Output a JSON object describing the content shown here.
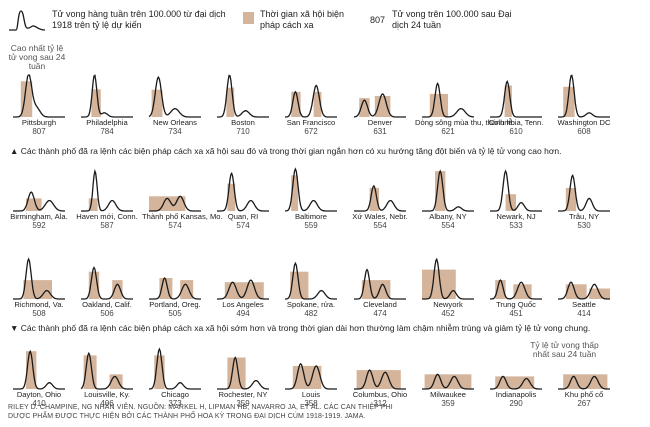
{
  "legend": {
    "line_label": "Tử vong hàng tuần trên 100.000 từ đại dịch 1918 trên tỷ lệ dự kiến",
    "bar_label": "Thời gian xã hội biện pháp cách xa",
    "number_example": "807",
    "number_label": "Tử vong trên 100.000 sau Đại dịch 24 tuần"
  },
  "top_note": "Cao nhất tỷ lệ tử vong sau 24 tuần",
  "section_notes": {
    "up": "▲ Các thành phố đã ra lệnh các biện pháp cách xa xã hội sau đó và trong thời gian ngắn hơn có xu hướng tăng đột biến và tỷ lệ tử vong cao hơn.",
    "down": "▼ Các thành phố đã ra lệnh các biện pháp cách xa xã hội sớm hơn và trong thời gian dài hơn thường làm chậm nhiễm trùng và giảm tỷ lệ tử vong chung."
  },
  "bottom_note": "Tỷ lệ tử vong thấp nhất sau 24 tuần",
  "credit": {
    "line1": "RILEY D. CHAMPINE, NG NHÂN VIÊN. NGUỒN: MARKEL H, LIPMAN HB, NAVARRO JA, ET AL. CÁC CAN THIỆP PHI",
    "line2": "DƯỢC PHẨM ĐƯỢC THỰC HIỆN BỞI CÁC THÀNH PHỐ HOA KỲ TRONG ĐẠI DỊCH CÚM 1918-1919. JAMA."
  },
  "colors": {
    "line": "#1a1a1a",
    "bar": "#d4b59c"
  },
  "chart_data": {
    "type": "line",
    "subtype": "small-multiples",
    "xlabel": "",
    "ylabel": "",
    "cities": [
      {
        "name": "Pittsburgh",
        "deaths": 807,
        "bars": [
          [
            0.15,
            0.37,
            0.85
          ]
        ],
        "peaks": [
          [
            0.3,
            1.0,
            0.06
          ],
          [
            0.45,
            0.22,
            0.07
          ]
        ]
      },
      {
        "name": "Philadelphia",
        "deaths": 784,
        "bars": [
          [
            0.2,
            0.38,
            0.66
          ]
        ],
        "peaks": [
          [
            0.26,
            1.0,
            0.045
          ],
          [
            0.45,
            0.1,
            0.06
          ]
        ]
      },
      {
        "name": "New Orleans",
        "deaths": 734,
        "bars": [
          [
            0.05,
            0.26,
            0.65
          ]
        ],
        "peaks": [
          [
            0.18,
            0.95,
            0.06
          ],
          [
            0.5,
            0.2,
            0.08
          ]
        ]
      },
      {
        "name": "Boston",
        "deaths": 710,
        "bars": [
          [
            0.18,
            0.33,
            0.7
          ]
        ],
        "peaks": [
          [
            0.24,
            1.0,
            0.05
          ],
          [
            0.55,
            0.15,
            0.07
          ]
        ]
      },
      {
        "name": "San Francisco",
        "deaths": 672,
        "bars": [
          [
            0.12,
            0.3,
            0.6
          ],
          [
            0.55,
            0.7,
            0.6
          ]
        ],
        "peaks": [
          [
            0.2,
            0.6,
            0.05
          ],
          [
            0.6,
            0.75,
            0.06
          ]
        ]
      },
      {
        "name": "Denver",
        "deaths": 631,
        "bars": [
          [
            0.1,
            0.3,
            0.45
          ],
          [
            0.4,
            0.7,
            0.5
          ]
        ],
        "peaks": [
          [
            0.2,
            0.4,
            0.06
          ],
          [
            0.55,
            0.55,
            0.07
          ]
        ]
      },
      {
        "name": "Dòng sông mùa thu, thánh lễ.",
        "deaths": 621,
        "bars": [
          [
            0.15,
            0.5,
            0.55
          ]
        ],
        "peaks": [
          [
            0.3,
            0.8,
            0.05
          ],
          [
            0.75,
            0.2,
            0.08
          ]
        ]
      },
      {
        "name": "Columbia, Tenn.",
        "deaths": 610,
        "bars": [
          [
            0.28,
            0.42,
            0.75
          ]
        ],
        "peaks": [
          [
            0.33,
            0.85,
            0.05
          ]
        ]
      },
      {
        "name": "Washington DC",
        "deaths": 608,
        "bars": [
          [
            0.1,
            0.32,
            0.72
          ]
        ],
        "peaks": [
          [
            0.26,
            1.0,
            0.05
          ],
          [
            0.6,
            0.1,
            0.06
          ]
        ]
      },
      {
        "name": "Birmingham, Ala.",
        "deaths": 592,
        "bars": [
          [
            0.25,
            0.55,
            0.3
          ]
        ],
        "peaks": [
          [
            0.35,
            0.45,
            0.06
          ],
          [
            0.7,
            0.25,
            0.08
          ]
        ]
      },
      {
        "name": "Haven mới, Conn.",
        "deaths": 587,
        "bars": [
          [
            0.15,
            0.32,
            0.3
          ]
        ],
        "peaks": [
          [
            0.27,
            0.95,
            0.04
          ],
          [
            0.6,
            0.25,
            0.07
          ]
        ]
      },
      {
        "name": "Thành phố Kansas, Mo.",
        "deaths": 574,
        "bars": [
          [
            0.0,
            0.7,
            0.35
          ]
        ],
        "peaks": [
          [
            0.35,
            0.3,
            0.07
          ],
          [
            0.6,
            0.35,
            0.07
          ]
        ]
      },
      {
        "name": "Quan, RI",
        "deaths": 574,
        "bars": [
          [
            0.2,
            0.35,
            0.65
          ]
        ],
        "peaks": [
          [
            0.28,
            0.9,
            0.05
          ],
          [
            0.65,
            0.25,
            0.07
          ]
        ]
      },
      {
        "name": "Baltimore",
        "deaths": 559,
        "bars": [
          [
            0.12,
            0.25,
            0.85
          ]
        ],
        "peaks": [
          [
            0.2,
            1.0,
            0.05
          ],
          [
            0.55,
            0.25,
            0.07
          ]
        ]
      },
      {
        "name": "Xứ Wales, Nebr.",
        "deaths": 554,
        "bars": [
          [
            0.3,
            0.48,
            0.55
          ]
        ],
        "peaks": [
          [
            0.38,
            0.6,
            0.05
          ],
          [
            0.7,
            0.25,
            0.07
          ]
        ]
      },
      {
        "name": "Albany, NY",
        "deaths": 554,
        "bars": [
          [
            0.25,
            0.45,
            0.95
          ]
        ],
        "peaks": [
          [
            0.35,
            0.95,
            0.05
          ],
          [
            0.7,
            0.1,
            0.06
          ]
        ]
      },
      {
        "name": "Newark, NJ",
        "deaths": 533,
        "bars": [
          [
            0.3,
            0.5,
            0.4
          ]
        ],
        "peaks": [
          [
            0.3,
            0.95,
            0.05
          ],
          [
            0.6,
            0.2,
            0.06
          ]
        ]
      },
      {
        "name": "Trâu, NY",
        "deaths": 530,
        "bars": [
          [
            0.15,
            0.35,
            0.55
          ]
        ],
        "peaks": [
          [
            0.28,
            0.85,
            0.05
          ],
          [
            0.6,
            0.3,
            0.06
          ]
        ]
      },
      {
        "name": "Richmond, Va.",
        "deaths": 508,
        "bars": [
          [
            0.2,
            0.75,
            0.45
          ]
        ],
        "peaks": [
          [
            0.3,
            0.95,
            0.05
          ],
          [
            0.65,
            0.2,
            0.07
          ]
        ]
      },
      {
        "name": "Oakland, Calif.",
        "deaths": 506,
        "bars": [
          [
            0.15,
            0.35,
            0.65
          ],
          [
            0.6,
            0.8,
            0.45
          ]
        ],
        "peaks": [
          [
            0.25,
            0.75,
            0.05
          ],
          [
            0.7,
            0.35,
            0.06
          ]
        ]
      },
      {
        "name": "Portland, Oreg.",
        "deaths": 505,
        "bars": [
          [
            0.2,
            0.45,
            0.5
          ],
          [
            0.6,
            0.85,
            0.45
          ]
        ],
        "peaks": [
          [
            0.3,
            0.5,
            0.05
          ],
          [
            0.7,
            0.35,
            0.07
          ]
        ]
      },
      {
        "name": "Los Angeles",
        "deaths": 494,
        "bars": [
          [
            0.15,
            0.9,
            0.4
          ]
        ],
        "peaks": [
          [
            0.3,
            0.4,
            0.07
          ],
          [
            0.65,
            0.45,
            0.07
          ]
        ]
      },
      {
        "name": "Spokane, rửa.",
        "deaths": 482,
        "bars": [
          [
            0.1,
            0.45,
            0.65
          ]
        ],
        "peaks": [
          [
            0.2,
            0.85,
            0.05
          ],
          [
            0.7,
            0.2,
            0.07
          ]
        ]
      },
      {
        "name": "Cleveland",
        "deaths": 474,
        "bars": [
          [
            0.15,
            0.7,
            0.45
          ]
        ],
        "peaks": [
          [
            0.25,
            0.7,
            0.05
          ],
          [
            0.55,
            0.35,
            0.06
          ]
        ]
      },
      {
        "name": "Newyork",
        "deaths": 452,
        "bars": [
          [
            0.0,
            0.65,
            0.7
          ]
        ],
        "peaks": [
          [
            0.28,
            0.95,
            0.05
          ],
          [
            0.6,
            0.2,
            0.06
          ]
        ]
      },
      {
        "name": "Trung Quốc",
        "deaths": 451,
        "bars": [
          [
            0.1,
            0.3,
            0.45
          ],
          [
            0.45,
            0.8,
            0.35
          ]
        ],
        "peaks": [
          [
            0.2,
            0.45,
            0.05
          ],
          [
            0.6,
            0.4,
            0.07
          ]
        ]
      },
      {
        "name": "Seattle",
        "deaths": 414,
        "bars": [
          [
            0.15,
            0.55,
            0.35
          ],
          [
            0.6,
            1.0,
            0.25
          ]
        ],
        "peaks": [
          [
            0.25,
            0.4,
            0.06
          ],
          [
            0.7,
            0.35,
            0.07
          ]
        ]
      },
      {
        "name": "Dayton, Ohio",
        "deaths": 410,
        "bars": [
          [
            0.25,
            0.45,
            0.9
          ]
        ],
        "peaks": [
          [
            0.33,
            0.9,
            0.05
          ],
          [
            0.7,
            0.15,
            0.06
          ]
        ]
      },
      {
        "name": "Louisville, Ky.",
        "deaths": 406,
        "bars": [
          [
            0.05,
            0.3,
            0.8
          ],
          [
            0.55,
            0.8,
            0.35
          ]
        ],
        "peaks": [
          [
            0.15,
            0.85,
            0.05
          ],
          [
            0.65,
            0.3,
            0.07
          ]
        ]
      },
      {
        "name": "Chicago",
        "deaths": 373,
        "bars": [
          [
            0.1,
            0.3,
            0.8
          ]
        ],
        "peaks": [
          [
            0.2,
            0.95,
            0.05
          ],
          [
            0.6,
            0.15,
            0.06
          ]
        ]
      },
      {
        "name": "Rochester, NY",
        "deaths": 359,
        "bars": [
          [
            0.2,
            0.55,
            0.75
          ]
        ],
        "peaks": [
          [
            0.35,
            0.75,
            0.05
          ],
          [
            0.75,
            0.2,
            0.07
          ]
        ]
      },
      {
        "name": "Louis",
        "deaths": 358,
        "bars": [
          [
            0.15,
            0.7,
            0.55
          ]
        ],
        "peaks": [
          [
            0.3,
            0.6,
            0.06
          ],
          [
            0.6,
            0.55,
            0.07
          ]
        ]
      },
      {
        "name": "Columbus, Ohio",
        "deaths": 312,
        "bars": [
          [
            0.05,
            0.9,
            0.45
          ]
        ],
        "peaks": [
          [
            0.3,
            0.45,
            0.06
          ],
          [
            0.6,
            0.4,
            0.07
          ]
        ]
      },
      {
        "name": "Milwaukee",
        "deaths": 359,
        "bars": [
          [
            0.05,
            0.95,
            0.35
          ]
        ],
        "peaks": [
          [
            0.3,
            0.35,
            0.06
          ],
          [
            0.62,
            0.3,
            0.07
          ]
        ]
      },
      {
        "name": "Indianapolis",
        "deaths": 290,
        "bars": [
          [
            0.1,
            0.85,
            0.3
          ]
        ],
        "peaks": [
          [
            0.25,
            0.3,
            0.06
          ],
          [
            0.7,
            0.25,
            0.07
          ]
        ]
      },
      {
        "name": "Khu phố cổ",
        "deaths": 267,
        "bars": [
          [
            0.1,
            0.95,
            0.35
          ]
        ],
        "peaks": [
          [
            0.3,
            0.3,
            0.06
          ],
          [
            0.7,
            0.3,
            0.07
          ]
        ]
      }
    ]
  }
}
